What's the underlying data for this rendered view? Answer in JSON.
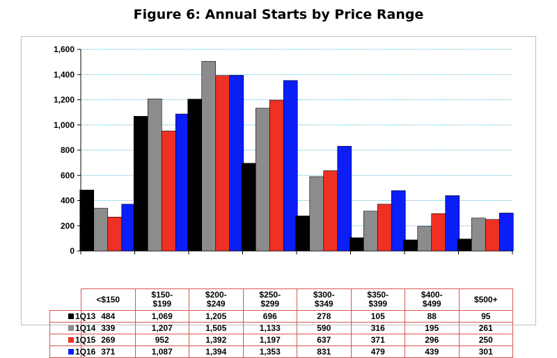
{
  "chart_data": {
    "type": "bar",
    "title": "Figure 6: Annual Starts by Price Range",
    "categories": [
      "<$150",
      "$150-\n$199",
      "$200-\n$249",
      "$250-\n$299",
      "$300-\n$349",
      "$350-\n$399",
      "$400-\n$499",
      "$500+"
    ],
    "series": [
      {
        "name": "1Q13",
        "color": "#000000",
        "values": [
          484,
          1069,
          1205,
          696,
          278,
          105,
          88,
          95
        ],
        "labels": [
          "484",
          "1,069",
          "1,205",
          "696",
          "278",
          "105",
          "88",
          "95"
        ]
      },
      {
        "name": "1Q14",
        "color": "#8c8c8c",
        "values": [
          339,
          1207,
          1505,
          1133,
          590,
          316,
          195,
          261
        ],
        "labels": [
          "339",
          "1,207",
          "1,505",
          "1,133",
          "590",
          "316",
          "195",
          "261"
        ]
      },
      {
        "name": "1Q15",
        "color": "#ee3124",
        "values": [
          269,
          952,
          1392,
          1197,
          637,
          371,
          296,
          250
        ],
        "labels": [
          "269",
          "952",
          "1,392",
          "1,197",
          "637",
          "371",
          "296",
          "250"
        ]
      },
      {
        "name": "1Q16",
        "color": "#0a1ef5",
        "values": [
          371,
          1087,
          1394,
          1353,
          831,
          479,
          439,
          301
        ],
        "labels": [
          "371",
          "1,087",
          "1,394",
          "1,353",
          "831",
          "479",
          "439",
          "301"
        ]
      }
    ],
    "ylim": [
      0,
      1600
    ],
    "yticks": [
      0,
      200,
      400,
      600,
      800,
      1000,
      1200,
      1400,
      1600
    ],
    "ytick_labels": [
      "0",
      "200",
      "400",
      "600",
      "800",
      "1,000",
      "1,200",
      "1,400",
      "1,600"
    ],
    "grid": true,
    "grid_color": "#7ec8e3",
    "legend": "data-table-below",
    "xlabel": "",
    "ylabel": ""
  }
}
